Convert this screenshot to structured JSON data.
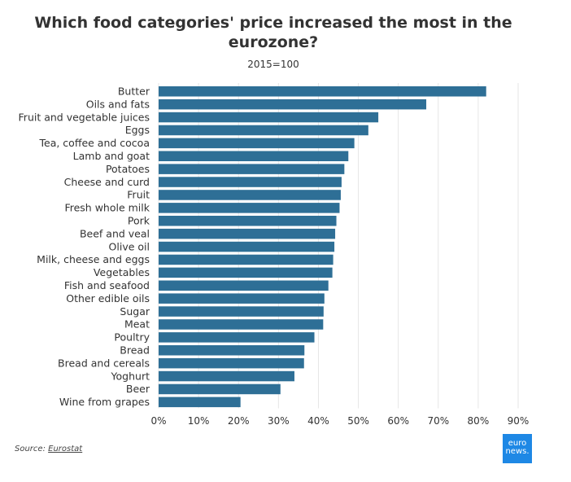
{
  "chart_data": {
    "type": "bar",
    "orientation": "horizontal",
    "title": "Which food categories' price increased the most in the eurozone?",
    "subtitle": "2015=100",
    "categories": [
      "Butter",
      "Oils and fats",
      "Fruit and vegetable juices",
      "Eggs",
      "Tea, coffee and cocoa",
      "Lamb and goat",
      "Potatoes",
      "Cheese and curd",
      "Fruit",
      "Fresh whole milk",
      "Pork",
      "Beef and veal",
      "Olive oil",
      "Milk, cheese and eggs",
      "Vegetables",
      "Fish and seafood",
      "Other edible oils",
      "Sugar",
      "Meat",
      "Poultry",
      "Bread",
      "Bread and cereals",
      "Yoghurt",
      "Beer",
      "Wine from grapes"
    ],
    "values": [
      82,
      67,
      55,
      52.5,
      49,
      47.5,
      46.5,
      45.8,
      45.6,
      45.3,
      44.5,
      44.2,
      44,
      43.7,
      43.5,
      42.5,
      41.5,
      41.3,
      41.2,
      39,
      36.5,
      36.4,
      34,
      30.5,
      20.5
    ],
    "xlim": [
      0,
      90
    ],
    "xticks": [
      "0%",
      "10%",
      "20%",
      "30%",
      "40%",
      "50%",
      "60%",
      "70%",
      "80%",
      "90%"
    ],
    "grid": true,
    "bar_color": "#2e6f96"
  },
  "source": {
    "label": "Source:",
    "link": "Eurostat"
  },
  "logo": {
    "line1": "euro",
    "line2": "news."
  }
}
